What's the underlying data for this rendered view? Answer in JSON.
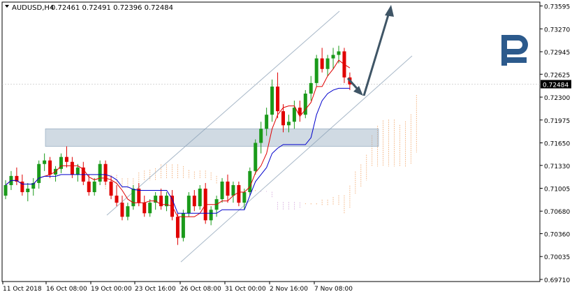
{
  "header": {
    "symbol": "AUDUSD,H4",
    "ohlc": "0.72461 0.72491 0.72396 0.72484"
  },
  "chart_data": {
    "type": "candlestick",
    "title": "AUDUSD,H4",
    "ylim": [
      0.6968,
      0.7365
    ],
    "price_ticks": [
      "0.73595",
      "0.73270",
      "0.72945",
      "0.72625",
      "0.72300",
      "0.71975",
      "0.71650",
      "0.71330",
      "0.71005",
      "0.70680",
      "0.70360",
      "0.70035",
      "0.69710"
    ],
    "current_price": "0.72484",
    "time_ticks": [
      "11 Oct 2018",
      "16 Oct 08:00",
      "19 Oct 00:00",
      "23 Oct 16:00",
      "26 Oct 08:00",
      "31 Oct 00:00",
      "2 Nov 16:00",
      "7 Nov 08:00"
    ],
    "candles": [
      [
        0.709,
        0.7112,
        0.7085,
        0.7105
      ],
      [
        0.7105,
        0.7125,
        0.7098,
        0.7118
      ],
      [
        0.7118,
        0.713,
        0.7105,
        0.711
      ],
      [
        0.711,
        0.712,
        0.709,
        0.7095
      ],
      [
        0.7095,
        0.7108,
        0.7082,
        0.71
      ],
      [
        0.71,
        0.7115,
        0.709,
        0.7108
      ],
      [
        0.7108,
        0.714,
        0.71,
        0.7135
      ],
      [
        0.7135,
        0.715,
        0.7125,
        0.714
      ],
      [
        0.714,
        0.7145,
        0.7115,
        0.712
      ],
      [
        0.712,
        0.7132,
        0.711,
        0.7128
      ],
      [
        0.7128,
        0.715,
        0.7122,
        0.7145
      ],
      [
        0.7145,
        0.716,
        0.713,
        0.7138
      ],
      [
        0.7138,
        0.7145,
        0.7115,
        0.712
      ],
      [
        0.712,
        0.7135,
        0.711,
        0.713
      ],
      [
        0.713,
        0.7138,
        0.7105,
        0.711
      ],
      [
        0.711,
        0.712,
        0.709,
        0.7095
      ],
      [
        0.7095,
        0.7115,
        0.709,
        0.711
      ],
      [
        0.711,
        0.714,
        0.7105,
        0.7135
      ],
      [
        0.7135,
        0.714,
        0.7105,
        0.711
      ],
      [
        0.711,
        0.7118,
        0.7085,
        0.709
      ],
      [
        0.709,
        0.7105,
        0.7075,
        0.708
      ],
      [
        0.708,
        0.709,
        0.7055,
        0.706
      ],
      [
        0.706,
        0.708,
        0.7055,
        0.7075
      ],
      [
        0.7075,
        0.7105,
        0.707,
        0.71
      ],
      [
        0.71,
        0.7108,
        0.7075,
        0.708
      ],
      [
        0.708,
        0.709,
        0.706,
        0.7065
      ],
      [
        0.7065,
        0.7085,
        0.706,
        0.708
      ],
      [
        0.708,
        0.7095,
        0.707,
        0.709
      ],
      [
        0.709,
        0.71,
        0.707,
        0.7075
      ],
      [
        0.7075,
        0.7095,
        0.7068,
        0.709
      ],
      [
        0.709,
        0.7098,
        0.7055,
        0.706
      ],
      [
        0.706,
        0.7065,
        0.702,
        0.703
      ],
      [
        0.703,
        0.707,
        0.7025,
        0.7065
      ],
      [
        0.7065,
        0.7095,
        0.706,
        0.709
      ],
      [
        0.709,
        0.7098,
        0.7068,
        0.7075
      ],
      [
        0.7075,
        0.7105,
        0.707,
        0.71
      ],
      [
        0.71,
        0.7108,
        0.705,
        0.7055
      ],
      [
        0.7055,
        0.7075,
        0.7048,
        0.707
      ],
      [
        0.707,
        0.709,
        0.706,
        0.7085
      ],
      [
        0.7085,
        0.7115,
        0.708,
        0.711
      ],
      [
        0.711,
        0.712,
        0.708,
        0.709
      ],
      [
        0.709,
        0.711,
        0.708,
        0.7105
      ],
      [
        0.7105,
        0.711,
        0.7075,
        0.708
      ],
      [
        0.708,
        0.71,
        0.707,
        0.7095
      ],
      [
        0.7095,
        0.713,
        0.709,
        0.7125
      ],
      [
        0.7125,
        0.717,
        0.712,
        0.7165
      ],
      [
        0.7165,
        0.7195,
        0.715,
        0.7185
      ],
      [
        0.7185,
        0.7215,
        0.7175,
        0.7205
      ],
      [
        0.7205,
        0.7255,
        0.7195,
        0.7245
      ],
      [
        0.7245,
        0.7265,
        0.72,
        0.721
      ],
      [
        0.721,
        0.722,
        0.718,
        0.719
      ],
      [
        0.719,
        0.7205,
        0.718,
        0.7195
      ],
      [
        0.7195,
        0.7225,
        0.7185,
        0.7215
      ],
      [
        0.7215,
        0.7225,
        0.7195,
        0.7205
      ],
      [
        0.7205,
        0.724,
        0.72,
        0.7235
      ],
      [
        0.7235,
        0.726,
        0.7225,
        0.725
      ],
      [
        0.725,
        0.729,
        0.7245,
        0.7285
      ],
      [
        0.7285,
        0.73,
        0.7265,
        0.727
      ],
      [
        0.727,
        0.729,
        0.726,
        0.7285
      ],
      [
        0.7285,
        0.73,
        0.727,
        0.729
      ],
      [
        0.729,
        0.7303,
        0.7278,
        0.7295
      ],
      [
        0.7295,
        0.73,
        0.725,
        0.7258
      ],
      [
        0.7258,
        0.7265,
        0.724,
        0.7248
      ]
    ],
    "annotations": {
      "channel": "ascending",
      "resistance_zone": [
        0.716,
        0.7185
      ],
      "forecast_arrows": "down then up"
    }
  }
}
